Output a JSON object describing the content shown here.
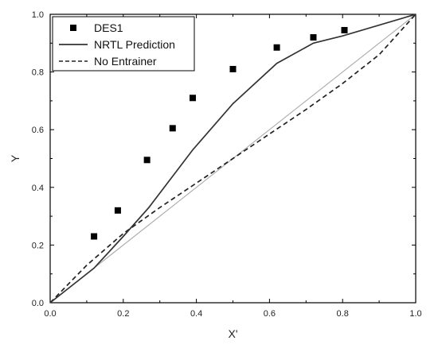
{
  "chart_data": {
    "type": "scatter",
    "xlabel": "X'",
    "ylabel": "Y",
    "xlim": [
      0.0,
      1.0
    ],
    "ylim": [
      0.0,
      1.0
    ],
    "xticks": [
      "0.0",
      "0.2",
      "0.4",
      "0.6",
      "0.8",
      "1.0"
    ],
    "yticks": [
      "0.0",
      "0.2",
      "0.4",
      "0.6",
      "0.8",
      "1.0"
    ],
    "grid": false,
    "legend": {
      "placement": "top-left"
    },
    "series": [
      {
        "name": "DES1",
        "kind": "markers",
        "marker": "square",
        "color": "#000000",
        "x": [
          0.12,
          0.185,
          0.265,
          0.335,
          0.39,
          0.5,
          0.62,
          0.72,
          0.805
        ],
        "y": [
          0.23,
          0.32,
          0.495,
          0.605,
          0.71,
          0.81,
          0.885,
          0.92,
          0.945
        ]
      },
      {
        "name": "NRTL Prediction",
        "kind": "line",
        "style": "solid",
        "color": "#333333",
        "x": [
          0.0,
          0.12,
          0.2,
          0.27,
          0.39,
          0.5,
          0.62,
          0.72,
          0.8,
          1.0
        ],
        "y": [
          0.0,
          0.12,
          0.23,
          0.33,
          0.53,
          0.69,
          0.83,
          0.9,
          0.925,
          1.0
        ]
      },
      {
        "name": "No Entrainer",
        "kind": "line",
        "style": "dashed",
        "color": "#222222",
        "x": [
          0.0,
          0.1,
          0.2,
          0.3,
          0.4,
          0.5,
          0.6,
          0.7,
          0.8,
          0.9,
          1.0
        ],
        "y": [
          0.0,
          0.13,
          0.24,
          0.33,
          0.415,
          0.5,
          0.585,
          0.67,
          0.76,
          0.86,
          1.0
        ]
      },
      {
        "kind": "line",
        "style": "solid",
        "color": "#aaaaaa",
        "x": [
          0.0,
          1.0
        ],
        "y": [
          0.0,
          1.0
        ]
      }
    ]
  }
}
